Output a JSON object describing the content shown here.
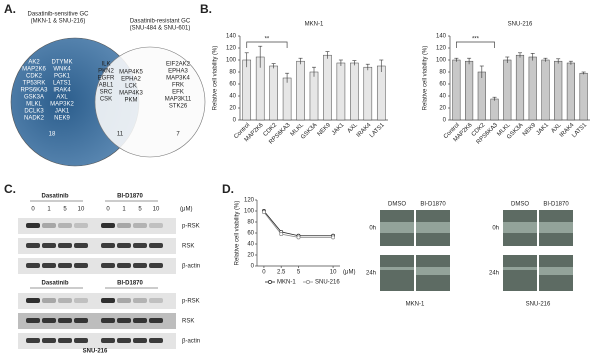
{
  "panels": {
    "a": "A.",
    "b": "B.",
    "c": "C.",
    "d": "D."
  },
  "venn": {
    "left_title": [
      "Dasatinib-sensitive GC",
      "(MKN-1 & SNU-216)"
    ],
    "right_title": [
      "Dasatinib-resistant GC",
      "(SNU-484 & SNU-601)"
    ],
    "left_only": [
      [
        "AK2",
        "MAP2K6",
        "CDK2",
        "TP53RK",
        "RPS6KA3",
        "GSK3A",
        "MLKL",
        "DCLK3",
        "NADK2"
      ],
      [
        "DTYMK",
        "WNK4",
        "PGK1",
        "LATS1",
        "IRAK4",
        "AXL",
        "MAP3K2",
        "JAK1",
        "NEK9"
      ]
    ],
    "left_count": 18,
    "overlap": [
      [
        "ILK",
        "PKN2",
        "EGFR",
        "ABL1",
        "SRC",
        "CSK"
      ],
      [
        "MAP4K5",
        "EPHA2",
        "LCK",
        "MAP4K3",
        "PKM"
      ]
    ],
    "overlap_count": 11,
    "right_only": [
      "EIF2AK2",
      "EPHA3",
      "MAP3K4",
      "FRK",
      "EFK",
      "MAP3K11",
      "STK26"
    ],
    "right_count": 7
  },
  "blots": [
    {
      "groups": [
        {
          "label": "Dasatinib",
          "doses": [
            0,
            1,
            5,
            10
          ]
        },
        {
          "label": "BI-D1870",
          "doses": [
            0,
            1,
            5,
            10
          ]
        }
      ],
      "unit": "(μM)",
      "rows": [
        "p-RSK",
        "RSK",
        "β-actin"
      ]
    },
    {
      "groups": [
        {
          "label": "Dasatinib"
        },
        {
          "label": "BI-D1870"
        }
      ],
      "rows": [
        "p-RSK",
        "RSK",
        "β-actin"
      ],
      "cell_line": "SNU-216"
    }
  ],
  "wound": {
    "panels": [
      {
        "cell_line": "MKN-1",
        "conditions": [
          "DMSO",
          "BI-D1870"
        ],
        "times": [
          "0h",
          "24h"
        ]
      },
      {
        "cell_line": "SNU-216",
        "conditions": [
          "DMSO",
          "BI-D1870"
        ],
        "times": [
          "0h",
          "24h"
        ]
      }
    ]
  },
  "chart_data": [
    {
      "type": "bar",
      "title": "MKN-1",
      "ylabel": "Relative cell viability (%)",
      "categories": [
        "Control",
        "MAP2K6",
        "CDK2",
        "RPS6KA3",
        "MLKL",
        "GSK3A",
        "NEK9",
        "JAK1",
        "AXL",
        "IRAK4",
        "LATS1"
      ],
      "values": [
        100,
        105,
        90,
        70,
        98,
        80,
        108,
        95,
        95,
        88,
        90
      ],
      "errors": [
        12,
        18,
        4,
        8,
        5,
        8,
        6,
        5,
        4,
        5,
        10
      ],
      "color": "#e6e6e6",
      "ylim": [
        0,
        140
      ],
      "yticks": [
        0,
        20,
        40,
        60,
        80,
        100,
        120,
        140
      ],
      "annotation": "**"
    },
    {
      "type": "bar",
      "title": "SNU-216",
      "ylabel": "Relative cell viability (%)",
      "categories": [
        "Control",
        "MAP2K6",
        "CDK2",
        "RPS6KA3",
        "MLKL",
        "GSK3A",
        "NEK9",
        "JAK1",
        "AXL",
        "IRAK4",
        "LATS1"
      ],
      "values": [
        100,
        98,
        80,
        35,
        100,
        108,
        105,
        100,
        98,
        95,
        78
      ],
      "errors": [
        3,
        5,
        10,
        3,
        5,
        4,
        6,
        3,
        4,
        3,
        2
      ],
      "color": "#c8c8c8",
      "ylim": [
        0,
        140
      ],
      "yticks": [
        0,
        20,
        40,
        60,
        80,
        100,
        120,
        140
      ],
      "annotation": "***"
    },
    {
      "type": "line",
      "ylabel": "Relative cell viability (%)",
      "xlabel": "(μM)",
      "x": [
        0,
        2.5,
        5,
        10
      ],
      "xlim": [
        -1,
        11
      ],
      "xticks": [
        0,
        2.5,
        5,
        10
      ],
      "ylim": [
        0,
        120
      ],
      "yticks": [
        0,
        20,
        40,
        60,
        80,
        100,
        120
      ],
      "series": [
        {
          "name": "MKN-1",
          "color": "#222222",
          "values": [
            100,
            62,
            55,
            55
          ]
        },
        {
          "name": "SNU-216",
          "color": "#888888",
          "values": [
            98,
            58,
            52,
            52
          ]
        }
      ]
    }
  ]
}
